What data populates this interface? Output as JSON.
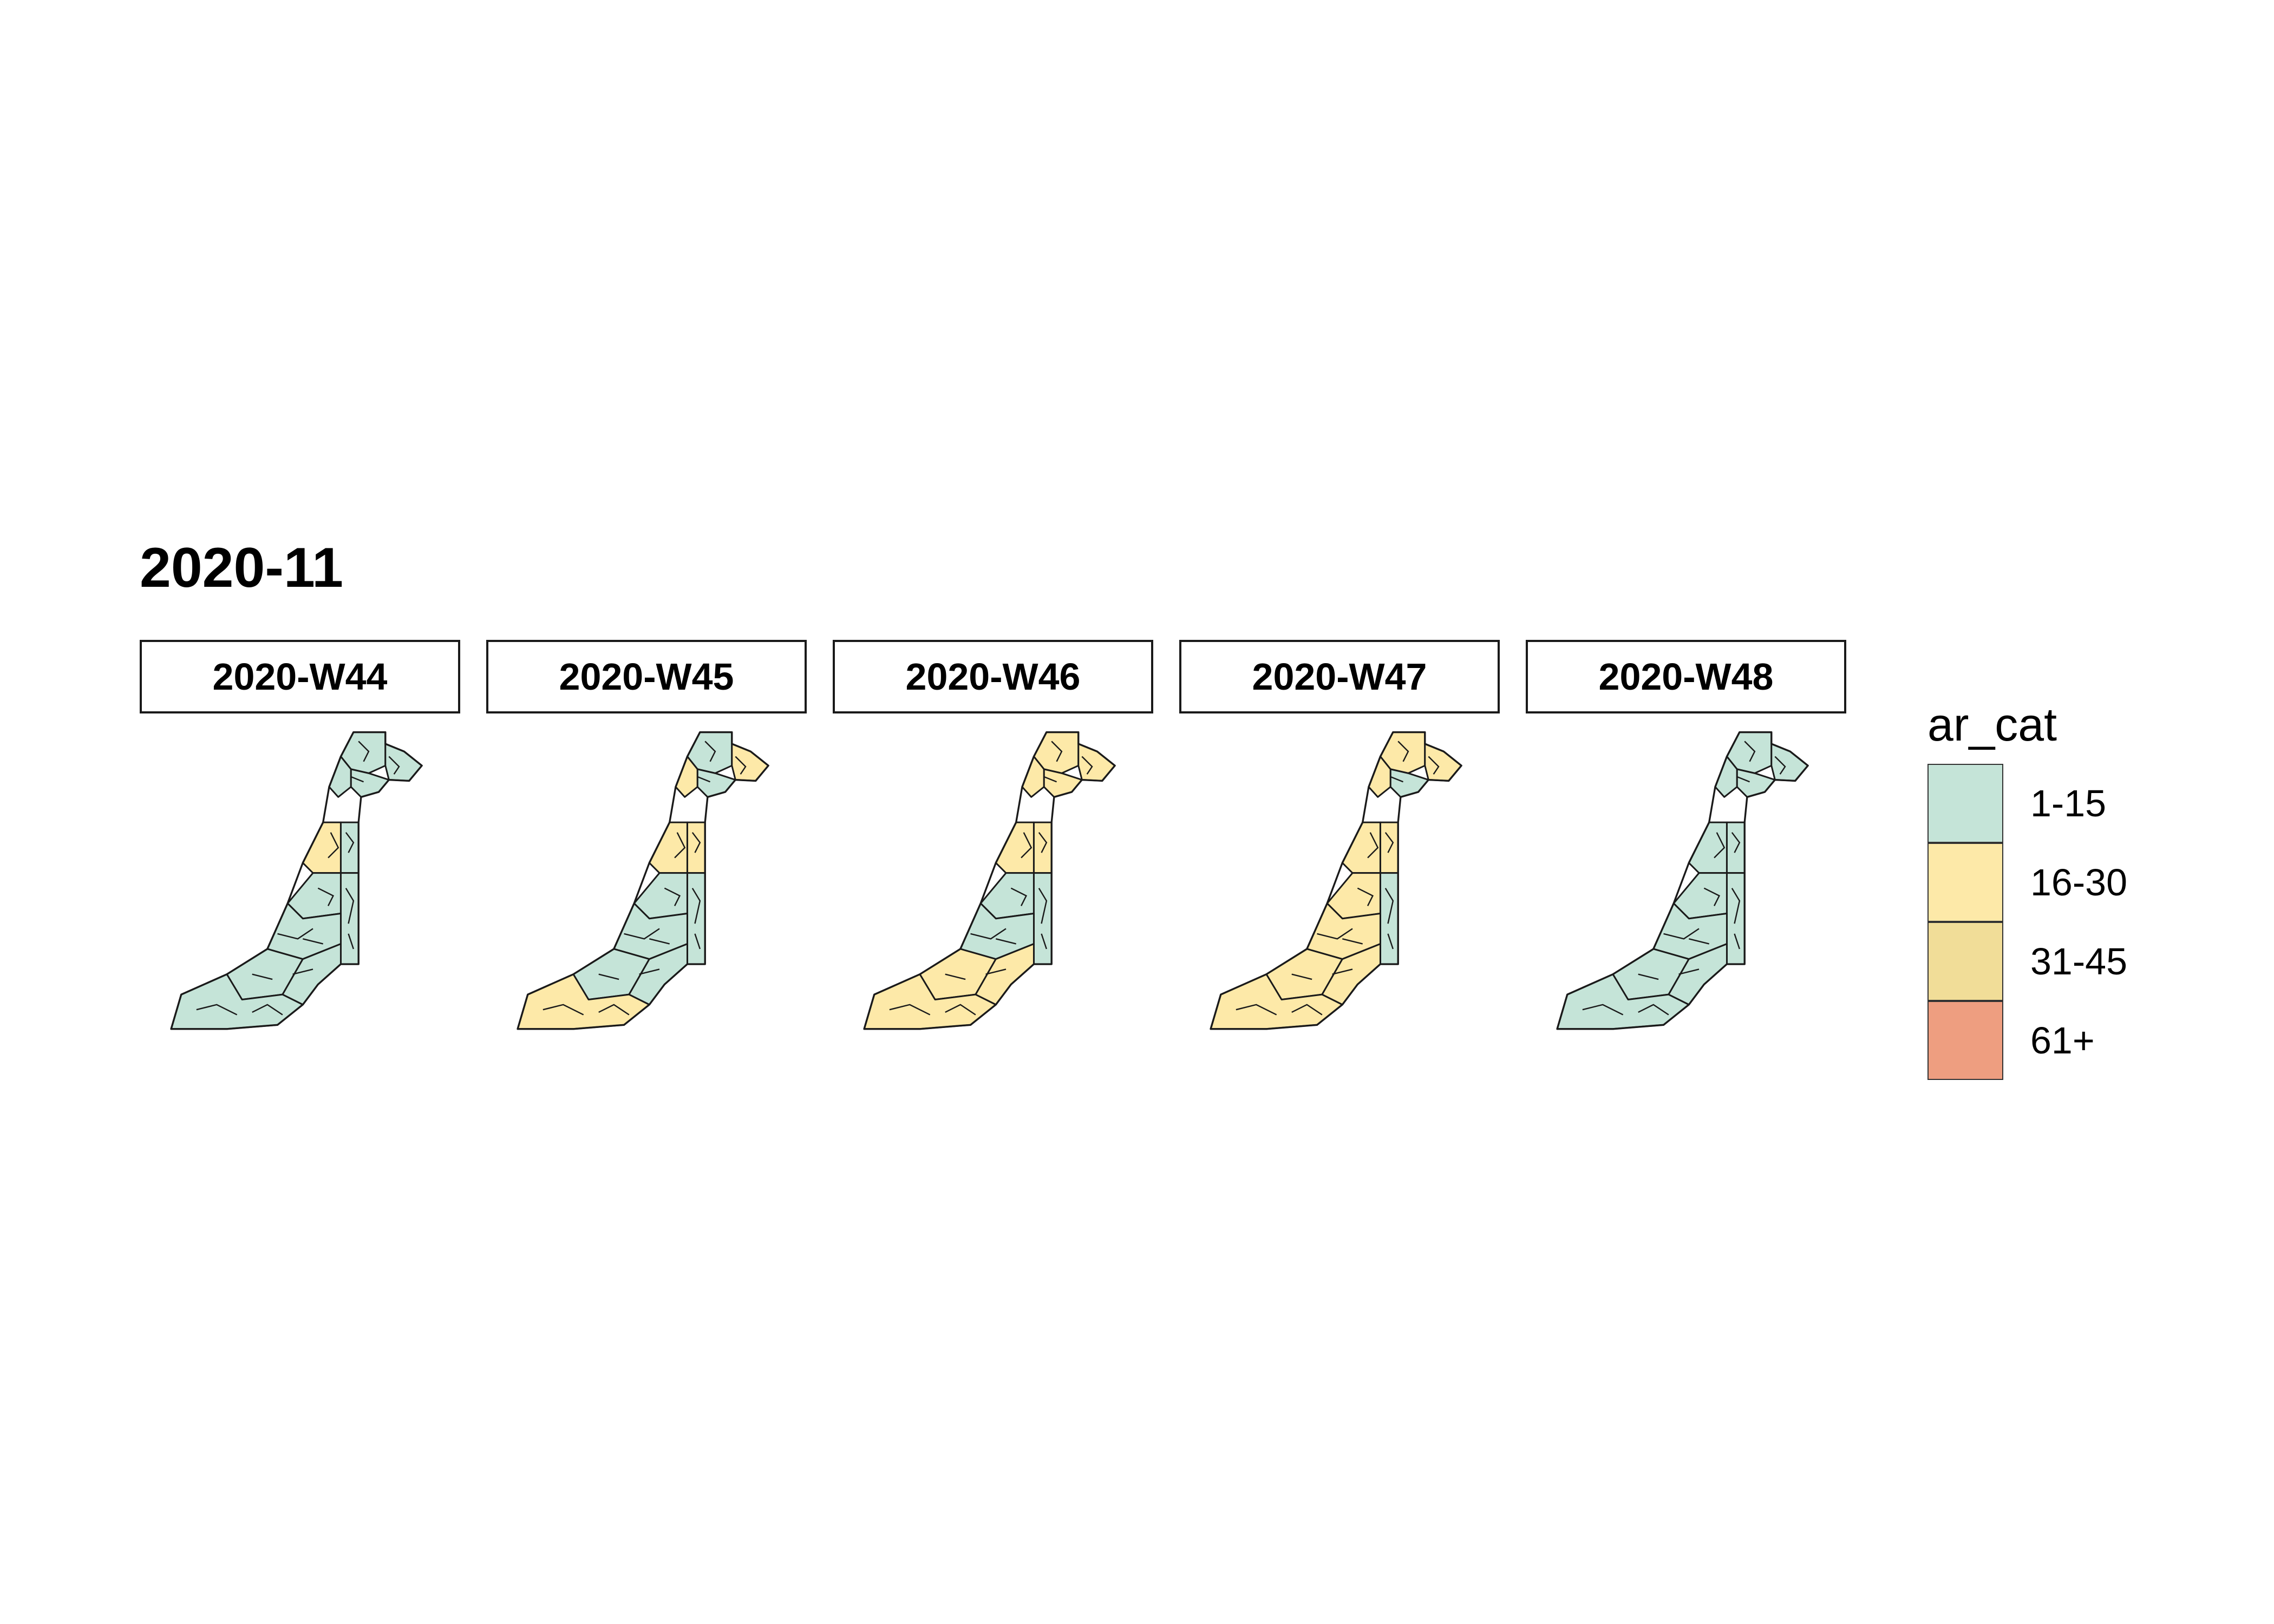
{
  "title": "2020-11",
  "legend": {
    "title": "ar_cat",
    "categories": [
      {
        "label": "1-15",
        "color": "#c5e4d8"
      },
      {
        "label": "16-30",
        "color": "#fde9a8"
      },
      {
        "label": "31-45",
        "color": "#f1dd98"
      },
      {
        "label": "61+",
        "color": "#ee9e80"
      }
    ]
  },
  "panels": [
    {
      "label": "2020-W44",
      "region_categories": [
        "1-15",
        "1-15",
        "1-15",
        "1-15",
        "16-30",
        "1-15",
        "1-15",
        "1-15",
        "1-15",
        "1-15",
        "1-15",
        "1-15"
      ]
    },
    {
      "label": "2020-W45",
      "region_categories": [
        "1-15",
        "16-30",
        "1-15",
        "16-30",
        "16-30",
        "16-30",
        "1-15",
        "1-15",
        "1-15",
        "1-15",
        "1-15",
        "16-30"
      ]
    },
    {
      "label": "2020-W46",
      "region_categories": [
        "16-30",
        "16-30",
        "16-30",
        "16-30",
        "16-30",
        "16-30",
        "1-15",
        "1-15",
        "1-15",
        "16-30",
        "16-30",
        "16-30"
      ]
    },
    {
      "label": "2020-W47",
      "region_categories": [
        "16-30",
        "16-30",
        "1-15",
        "16-30",
        "16-30",
        "16-30",
        "16-30",
        "1-15",
        "16-30",
        "16-30",
        "16-30",
        "16-30"
      ]
    },
    {
      "label": "2020-W48",
      "region_categories": [
        "1-15",
        "1-15",
        "1-15",
        "1-15",
        "1-15",
        "1-15",
        "1-15",
        "1-15",
        "1-15",
        "1-15",
        "1-15",
        "1-15"
      ]
    }
  ]
}
